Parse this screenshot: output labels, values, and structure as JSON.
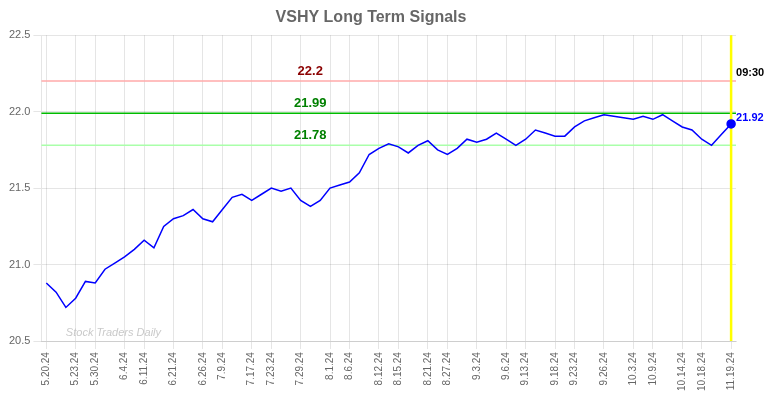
{
  "chart_data": {
    "type": "line",
    "title": "VSHY Long Term Signals",
    "categories": [
      "5.20.24",
      null,
      null,
      "5.23.24",
      null,
      "5.30.24",
      null,
      null,
      "6.4.24",
      null,
      "6.11.24",
      null,
      null,
      "6.21.24",
      null,
      null,
      "6.26.24",
      null,
      "7.9.24",
      null,
      null,
      "7.17.24",
      null,
      "7.23.24",
      null,
      null,
      "7.29.24",
      null,
      null,
      "8.1.24",
      null,
      "8.6.24",
      null,
      null,
      "8.12.24",
      null,
      "8.15.24",
      null,
      null,
      "8.21.24",
      null,
      "8.27.24",
      null,
      null,
      "9.3.24",
      null,
      null,
      "9.6.24",
      null,
      "9.13.24",
      null,
      null,
      "9.18.24",
      null,
      "9.23.24",
      null,
      null,
      "9.26.24",
      null,
      null,
      "10.3.24",
      null,
      "10.9.24",
      null,
      null,
      "10.14.24",
      null,
      "10.18.24",
      null,
      null,
      "11.19.24"
    ],
    "values": [
      20.88,
      20.82,
      20.72,
      20.78,
      20.89,
      20.88,
      20.97,
      21.01,
      21.05,
      21.1,
      21.16,
      21.11,
      21.25,
      21.3,
      21.32,
      21.36,
      21.3,
      21.28,
      21.36,
      21.44,
      21.46,
      21.42,
      21.46,
      21.5,
      21.48,
      21.5,
      21.42,
      21.38,
      21.42,
      21.5,
      21.52,
      21.54,
      21.6,
      21.72,
      21.76,
      21.79,
      21.77,
      21.73,
      21.78,
      21.81,
      21.75,
      21.72,
      21.76,
      21.82,
      21.8,
      21.82,
      21.86,
      21.82,
      21.78,
      21.82,
      21.88,
      21.86,
      21.84,
      21.84,
      21.9,
      21.94,
      21.96,
      21.98,
      21.97,
      21.96,
      21.95,
      21.97,
      21.95,
      21.98,
      21.94,
      21.9,
      21.88,
      21.82,
      21.78,
      21.85,
      21.92
    ],
    "color": "blue",
    "marker": "last",
    "ylim": [
      20.5,
      22.5
    ],
    "yticks": [
      20.5,
      {
        "value": 21.0,
        "label": "21.0"
      },
      21.5,
      {
        "value": 22.0,
        "label": "22.0"
      },
      22.5
    ],
    "grid": true,
    "hlines": [
      {
        "value": 22.2,
        "color": "#ffaaaa",
        "label": "22.2",
        "label_color": "darkred"
      },
      {
        "value": 21.99,
        "color": "#00bb00",
        "label": "21.99",
        "label_color": "green"
      },
      {
        "value": 21.78,
        "color": "#aaffaa",
        "label": "21.78",
        "label_color": "green"
      }
    ],
    "vline": {
      "color": "yellow",
      "label": "09:30"
    },
    "last_label": {
      "text": "21.92",
      "value": 21.92
    },
    "watermark": {
      "text": "Stock Traders Daily",
      "color": "#bbbbbb"
    }
  }
}
